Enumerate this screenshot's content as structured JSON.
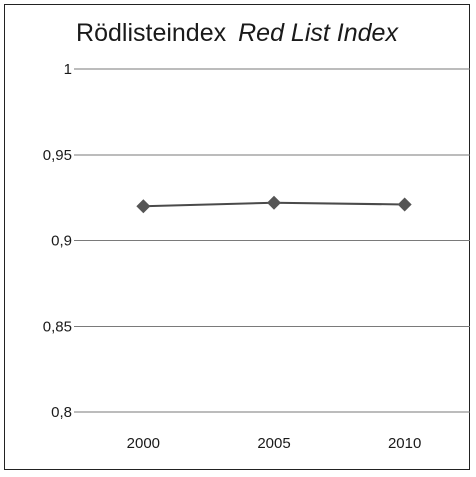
{
  "chart_data": {
    "type": "line",
    "title": "Rödlisteindex",
    "subtitle": "Red List Index",
    "categories": [
      "2000",
      "2005",
      "2010"
    ],
    "series": [
      {
        "values": [
          0.92,
          0.922,
          0.921
        ]
      }
    ],
    "ylim": [
      0.8,
      1
    ],
    "yticks": [
      "0,8",
      "0,85",
      "0,9",
      "0,95",
      "1"
    ],
    "ytick_values": [
      0.8,
      0.85,
      0.9,
      0.95,
      1
    ],
    "grid": true,
    "colors": {
      "line": "#4a4a4a",
      "marker": "#555555",
      "grid": "#7a7a7a"
    }
  }
}
